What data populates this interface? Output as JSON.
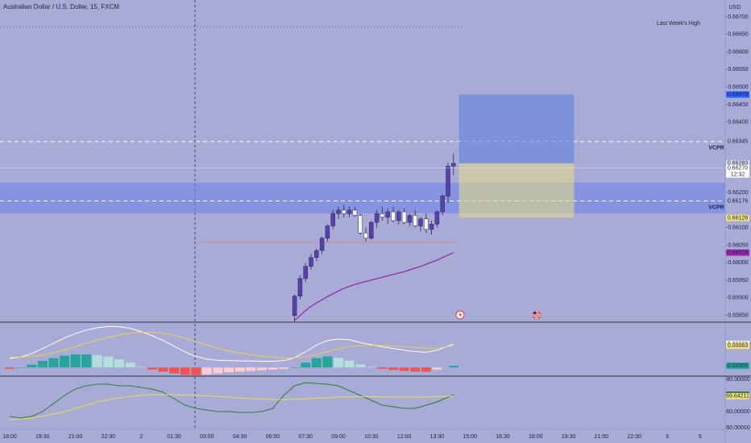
{
  "chart_data": [
    {
      "type": "candlestick",
      "title": "Australian Dollar / U.S. Dollar, 15, FXCM",
      "currency": "USD",
      "x": [
        "07:00",
        "07:15",
        "07:30",
        "07:45",
        "08:00",
        "08:15",
        "08:30",
        "08:45",
        "09:00",
        "09:15",
        "09:30",
        "09:45",
        "10:00",
        "10:15",
        "10:30",
        "10:45",
        "11:00",
        "11:15",
        "11:30",
        "11:45",
        "12:00",
        "12:15",
        "12:30",
        "12:45",
        "13:00",
        "13:15",
        "13:30",
        "13:45",
        "14:00",
        "14:15"
      ],
      "open": [
        0.6585,
        0.65905,
        0.65955,
        0.6599,
        0.66015,
        0.66035,
        0.6607,
        0.66105,
        0.6614,
        0.6615,
        0.6614,
        0.6615,
        0.66135,
        0.66085,
        0.6607,
        0.66115,
        0.6614,
        0.6613,
        0.66145,
        0.6612,
        0.66145,
        0.66115,
        0.66135,
        0.66105,
        0.66125,
        0.66095,
        0.6611,
        0.66145,
        0.6619,
        0.66275
      ],
      "high": [
        0.6591,
        0.65965,
        0.66,
        0.66025,
        0.6604,
        0.66075,
        0.6611,
        0.6615,
        0.6616,
        0.66165,
        0.6616,
        0.6616,
        0.6614,
        0.661,
        0.6612,
        0.6615,
        0.6616,
        0.66155,
        0.6616,
        0.6615,
        0.66155,
        0.6614,
        0.6615,
        0.6613,
        0.6614,
        0.6612,
        0.6615,
        0.66195,
        0.66285,
        0.6631
      ],
      "low": [
        0.6583,
        0.65895,
        0.65945,
        0.6598,
        0.66005,
        0.66025,
        0.6606,
        0.66095,
        0.66125,
        0.6613,
        0.6613,
        0.6613,
        0.6608,
        0.6606,
        0.66065,
        0.661,
        0.6612,
        0.6611,
        0.66115,
        0.6611,
        0.6611,
        0.66105,
        0.661,
        0.6609,
        0.66085,
        0.6608,
        0.661,
        0.66135,
        0.6617,
        0.6625
      ],
      "close": [
        0.65905,
        0.65955,
        0.6599,
        0.66015,
        0.66035,
        0.6607,
        0.66105,
        0.6614,
        0.6615,
        0.6614,
        0.6615,
        0.66135,
        0.66085,
        0.6607,
        0.66115,
        0.6614,
        0.6613,
        0.66145,
        0.6612,
        0.66145,
        0.66115,
        0.66135,
        0.66105,
        0.66125,
        0.66095,
        0.6611,
        0.66145,
        0.6619,
        0.66275,
        0.66283
      ],
      "up_color": "#5a3fae",
      "down_color": "#f3f3f8",
      "ma": {
        "color": "#8e24aa",
        "values": [
          0.65836,
          0.6585,
          0.65864,
          0.65876,
          0.65886,
          0.65895,
          0.65904,
          0.65912,
          0.6592,
          0.65927,
          0.65933,
          0.65938,
          0.65943,
          0.65947,
          0.65951,
          0.65955,
          0.65959,
          0.65963,
          0.65967,
          0.65971,
          0.65975,
          0.6598,
          0.65985,
          0.6599,
          0.65996,
          0.66002,
          0.66008,
          0.66015,
          0.66022,
          0.66029
        ]
      },
      "ylim": [
        0.65831,
        0.66748
      ],
      "yticks": [
        {
          "value": 0.667,
          "label": "0.66700"
        },
        {
          "value": 0.6665,
          "label": "0.66650"
        },
        {
          "value": 0.666,
          "label": "0.66600"
        },
        {
          "value": 0.6655,
          "label": "0.66550"
        },
        {
          "value": 0.665,
          "label": "0.66500"
        },
        {
          "value": 0.6645,
          "label": "0.66450"
        },
        {
          "value": 0.664,
          "label": "0.66400"
        },
        {
          "value": 0.662,
          "label": "0.66200"
        },
        {
          "value": 0.661,
          "label": "0.66100"
        },
        {
          "value": 0.6605,
          "label": "0.66050"
        },
        {
          "value": 0.66,
          "label": "0.66000"
        },
        {
          "value": 0.6595,
          "label": "0.65950"
        },
        {
          "value": 0.659,
          "label": "0.65900"
        },
        {
          "value": 0.6585,
          "label": "0.65850"
        }
      ],
      "xticks": [
        "18:00",
        "19:30",
        "21:00",
        "22:30",
        "2",
        "01:30",
        "03:00",
        "04:30",
        "06:00",
        "07:30",
        "09:00",
        "10:30",
        "12:00",
        "13:30",
        "15:00",
        "16:30",
        "18:00",
        "19:30",
        "21:00",
        "22:30",
        "3",
        "5"
      ],
      "price_labels": [
        {
          "value": 0.66479,
          "label": "0.66479",
          "bg": "#2962ff",
          "fg": "#ffffff"
        },
        {
          "value": 0.66345,
          "label": "0.66345",
          "bg": "#a7abd6",
          "fg": "#1f2140"
        },
        {
          "value": 0.66283,
          "label": "0.66283",
          "bg": "#dcdcea",
          "fg": "#1f2140"
        },
        {
          "value": 0.6627,
          "label": "0.66270",
          "sub": "12:32",
          "bg": "#ffffff",
          "fg": "#1f2140"
        },
        {
          "value": 0.66176,
          "label": "0.66176",
          "bg": "#a7abd6",
          "fg": "#1f2140"
        },
        {
          "value": 0.66128,
          "label": "0.66128",
          "bg": "#f3e27a",
          "fg": "#1f2140"
        },
        {
          "value": 0.66029,
          "label": "0.66029",
          "bg": "#9c27b0",
          "fg": "#ffffff"
        }
      ],
      "levels": [
        {
          "label": "VCPR",
          "value": 0.66345
        },
        {
          "label": "VCPR",
          "value": 0.66176
        }
      ],
      "zone": [
        0.66141,
        0.66228
      ],
      "last_week_high": {
        "label": "Last Week's High",
        "value": 0.66672
      },
      "position": {
        "start": "14:30",
        "end": "19:45",
        "entry": 0.66283,
        "target": 0.66479,
        "stop": 0.66128
      }
    },
    {
      "type": "macd",
      "x": [
        "18:00",
        "18:30",
        "19:00",
        "19:30",
        "20:00",
        "20:30",
        "21:00",
        "21:30",
        "22:00",
        "22:30",
        "23:00",
        "23:30",
        "00:00",
        "00:30",
        "01:00",
        "01:30",
        "02:00",
        "02:30",
        "03:00",
        "03:30",
        "04:00",
        "04:30",
        "05:00",
        "05:30",
        "06:00",
        "06:30",
        "07:00",
        "07:30",
        "08:00",
        "08:30",
        "09:00",
        "09:30",
        "10:00",
        "10:30",
        "11:00",
        "11:30",
        "12:00",
        "12:30",
        "13:00",
        "13:30",
        "14:15"
      ],
      "series": [
        {
          "color": "#ffffff",
          "label_bg": "#ffffff",
          "label_fg": "#1f2140",
          "values": [
            0.00026,
            0.0003,
            0.0004,
            0.00055,
            0.0007,
            0.00085,
            0.00098,
            0.00108,
            0.00115,
            0.00119,
            0.00118,
            0.00113,
            0.00104,
            0.00092,
            0.00078,
            0.00062,
            0.00045,
            0.00032,
            0.00024,
            0.00021,
            0.0002,
            0.00019,
            0.00019,
            0.00018,
            0.00018,
            0.0002,
            0.00028,
            0.00045,
            0.00065,
            0.00078,
            0.00082,
            0.0008,
            0.00072,
            0.00066,
            0.0006,
            0.00055,
            0.0005,
            0.00046,
            0.00044,
            0.0005,
            0.00068
          ]
        },
        {
          "color": "#e8d44d",
          "label_bg": "#f3e27a",
          "label_fg": "#1f2140",
          "values": [
            0.0003,
            0.0003,
            0.00032,
            0.00036,
            0.00043,
            0.00051,
            0.0006,
            0.0007,
            0.00079,
            0.00087,
            0.00094,
            0.00099,
            0.00102,
            0.00102,
            0.00099,
            0.00093,
            0.00085,
            0.00075,
            0.00065,
            0.00056,
            0.00048,
            0.00042,
            0.00037,
            0.00033,
            0.0003,
            0.00028,
            0.00028,
            0.00031,
            0.00038,
            0.00046,
            0.00054,
            0.0006,
            0.00063,
            0.00064,
            0.00064,
            0.00062,
            0.0006,
            0.00058,
            0.00056,
            0.00056,
            0.00063
          ]
        }
      ],
      "histogram": {
        "colors": [
          "#26a69a",
          "#b2dfdb",
          "#ef5350",
          "#ffcdd2"
        ],
        "label_bg": "#26a69a",
        "label_fg": "#ffffff",
        "values": [
          -4e-05,
          0,
          8e-05,
          0.00019,
          0.00027,
          0.00034,
          0.00038,
          0.00038,
          0.00036,
          0.00032,
          0.00024,
          0.00014,
          2e-05,
          -6e-05,
          -0.00012,
          -0.00017,
          -0.00021,
          -0.00022,
          -0.0002,
          -0.00017,
          -0.00014,
          -0.00012,
          -0.0001,
          -8e-05,
          -6e-05,
          -4e-05,
          0,
          0.00014,
          0.00027,
          0.00032,
          0.00028,
          0.0002,
          9e-05,
          2e-05,
          -4e-05,
          -7e-05,
          -0.0001,
          -0.00012,
          -0.00012,
          -6e-05,
          5e-05
        ]
      },
      "ylim": [
        -0.00025,
        0.00131
      ]
    },
    {
      "type": "rsi",
      "x": [
        "18:00",
        "18:30",
        "19:00",
        "19:30",
        "20:00",
        "20:30",
        "21:00",
        "21:30",
        "22:00",
        "22:30",
        "23:00",
        "23:30",
        "00:00",
        "00:30",
        "01:00",
        "01:30",
        "02:00",
        "02:30",
        "03:00",
        "03:30",
        "04:00",
        "04:30",
        "05:00",
        "05:30",
        "06:00",
        "06:30",
        "07:00",
        "07:30",
        "08:00",
        "08:30",
        "09:00",
        "09:30",
        "10:00",
        "10:30",
        "11:00",
        "11:30",
        "12:00",
        "12:30",
        "13:00",
        "13:30",
        "14:15"
      ],
      "series": [
        {
          "color": "#2e7d32",
          "label_bg": "#1b7a1f",
          "label_fg": "#ffffff",
          "values": [
            57,
            56,
            57,
            60,
            65,
            70,
            74,
            76,
            77,
            77,
            76,
            76,
            75,
            74,
            72,
            68,
            64,
            62,
            61,
            60,
            60,
            59.5,
            59.5,
            60,
            62,
            70,
            76,
            78,
            77.5,
            77,
            76,
            73,
            70,
            67,
            64,
            63,
            62,
            62,
            64,
            66,
            70.45321
          ]
        },
        {
          "color": "#e8e04a",
          "label_bg": "#f3e27a",
          "label_fg": "#1f2140",
          "values": [
            55,
            55.5,
            56,
            57,
            58.5,
            60,
            62,
            64,
            66,
            67.5,
            68.5,
            69.5,
            70,
            70.5,
            70.5,
            70.5,
            70.3,
            70,
            69.8,
            69.5,
            69,
            68.5,
            68,
            67.8,
            67.5,
            67.5,
            67.7,
            68,
            68.3,
            68.6,
            69,
            69.2,
            69.3,
            69.3,
            69.2,
            69.1,
            69,
            69,
            69.1,
            69.3,
            69.64211
          ]
        }
      ],
      "ylim": [
        49,
        82
      ],
      "yticks": [
        {
          "value": 80,
          "label": "80.00000"
        },
        {
          "value": 60,
          "label": "60.00000"
        },
        {
          "value": 50,
          "label": "50.00000"
        }
      ]
    }
  ]
}
